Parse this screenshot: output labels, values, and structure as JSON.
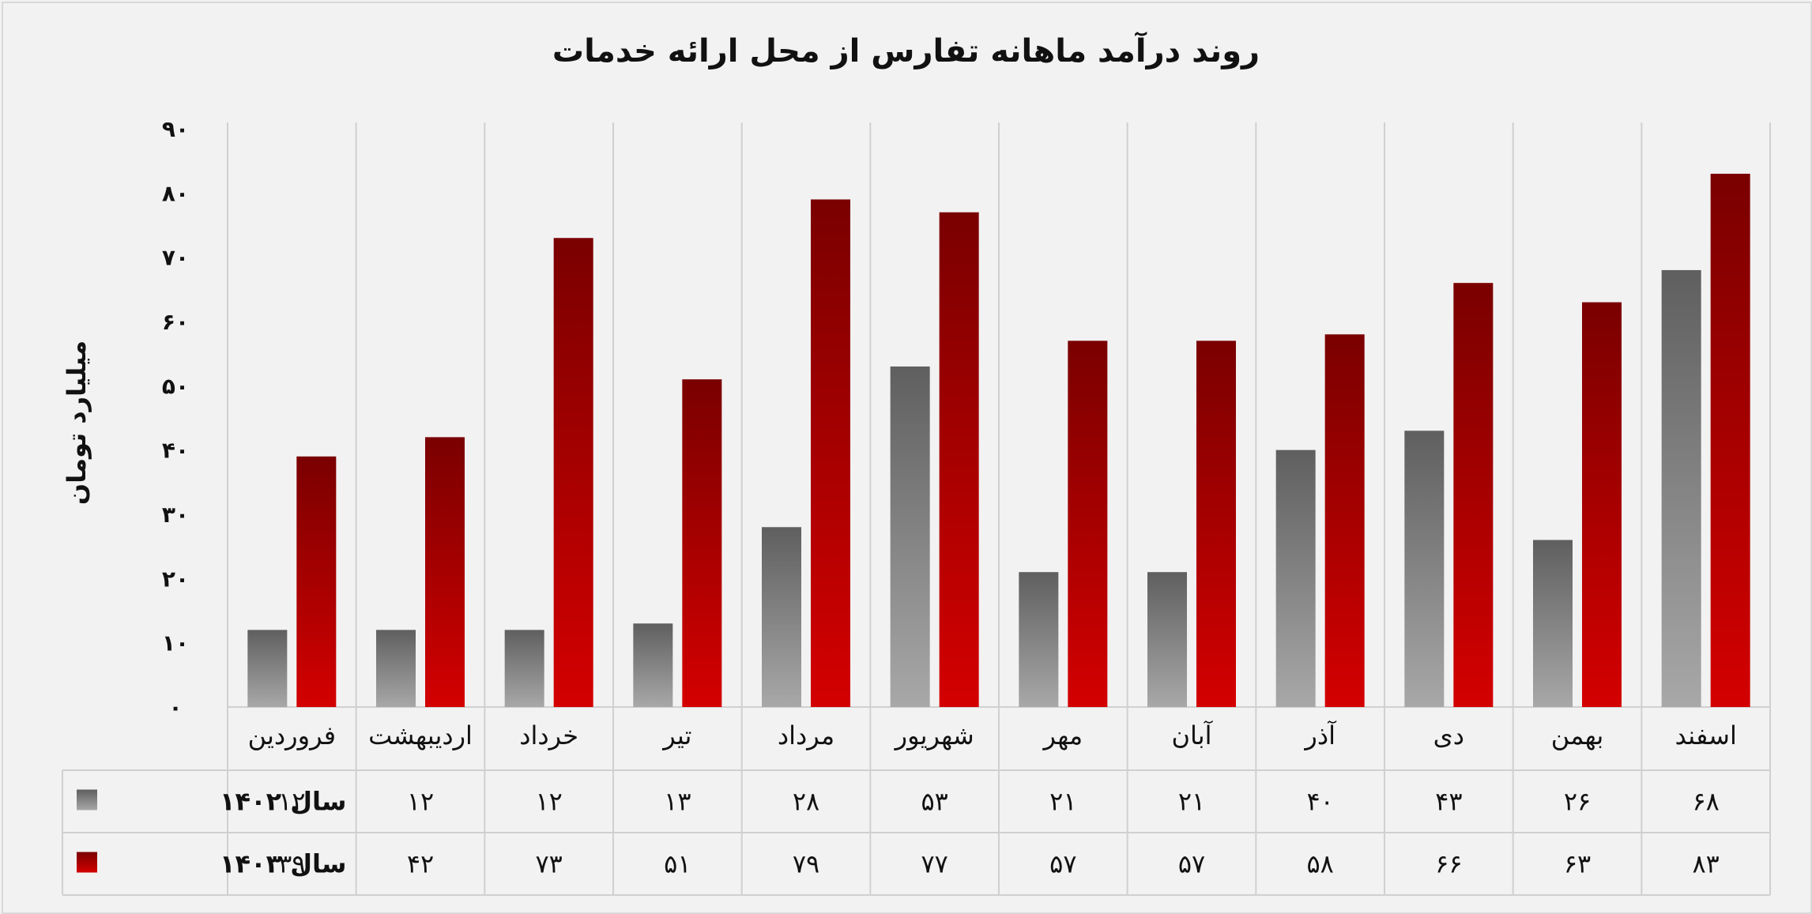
{
  "chart_data": {
    "type": "bar",
    "title": "روند درآمد ماهانه تفارس از محل ارائه خدمات",
    "ylabel": "میلیارد تومان",
    "ylim": [
      0,
      90
    ],
    "yticks": [
      0,
      10,
      20,
      30,
      40,
      50,
      60,
      70,
      80,
      90
    ],
    "ytick_labels": [
      "۰",
      "۱۰",
      "۲۰",
      "۳۰",
      "۴۰",
      "۵۰",
      "۶۰",
      "۷۰",
      "۸۰",
      "۹۰"
    ],
    "grid": "vertical",
    "legend": "data-table",
    "categories": [
      "فروردین",
      "اردیبهشت",
      "خرداد",
      "تیر",
      "مرداد",
      "شهریور",
      "مهر",
      "آبان",
      "آذر",
      "دی",
      "بهمن",
      "اسفند"
    ],
    "series": [
      {
        "name": "سال ۱۴۰۲",
        "color": "#808080",
        "values": [
          12,
          12,
          12,
          13,
          28,
          53,
          21,
          21,
          40,
          43,
          26,
          68
        ],
        "value_labels": [
          "۱۲",
          "۱۲",
          "۱۲",
          "۱۳",
          "۲۸",
          "۵۳",
          "۲۱",
          "۲۱",
          "۴۰",
          "۴۳",
          "۲۶",
          "۶۸"
        ]
      },
      {
        "name": "سال ۱۴۰۳",
        "color": "#c00000",
        "values": [
          39,
          42,
          73,
          51,
          79,
          77,
          57,
          57,
          58,
          66,
          63,
          83
        ],
        "value_labels": [
          "۳۹",
          "۴۲",
          "۷۳",
          "۵۱",
          "۷۹",
          "۷۷",
          "۵۷",
          "۵۷",
          "۵۸",
          "۶۶",
          "۶۳",
          "۸۳"
        ]
      }
    ]
  }
}
